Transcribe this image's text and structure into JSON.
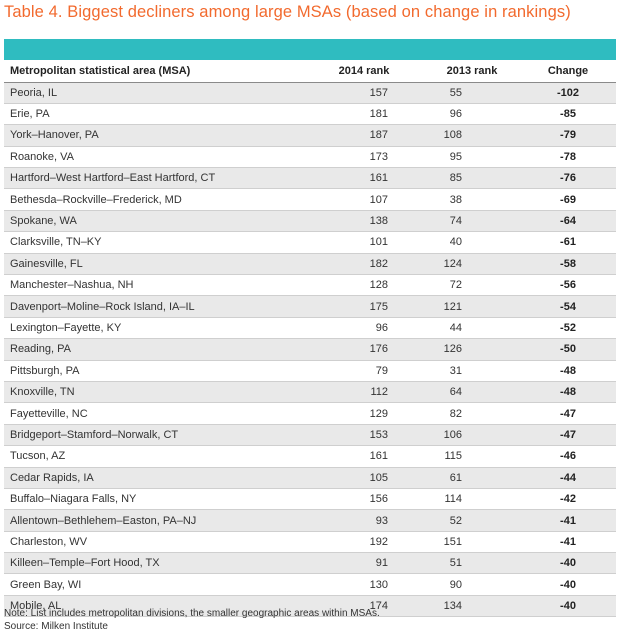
{
  "title": "Table 4. Biggest decliners among large MSAs (based on change in rankings)",
  "colors": {
    "title": "#f26a2e",
    "header_bar": "#2fbcc0"
  },
  "table": {
    "headers": [
      "Metropolitan statistical area (MSA)",
      "2014 rank",
      "2013 rank",
      "Change"
    ],
    "rows": [
      [
        "Peoria, IL",
        "157",
        "55",
        "-102"
      ],
      [
        "Erie, PA",
        "181",
        "96",
        "-85"
      ],
      [
        "York–Hanover, PA",
        "187",
        "108",
        "-79"
      ],
      [
        "Roanoke, VA",
        "173",
        "95",
        "-78"
      ],
      [
        "Hartford–West Hartford–East Hartford, CT",
        "161",
        "85",
        "-76"
      ],
      [
        "Bethesda–Rockville–Frederick, MD",
        "107",
        "38",
        "-69"
      ],
      [
        "Spokane, WA",
        "138",
        "74",
        "-64"
      ],
      [
        "Clarksville, TN–KY",
        "101",
        "40",
        "-61"
      ],
      [
        "Gainesville, FL",
        "182",
        "124",
        "-58"
      ],
      [
        "Manchester–Nashua, NH",
        "128",
        "72",
        "-56"
      ],
      [
        "Davenport–Moline–Rock Island, IA–IL",
        "175",
        "121",
        "-54"
      ],
      [
        "Lexington–Fayette, KY",
        "96",
        "44",
        "-52"
      ],
      [
        "Reading, PA",
        "176",
        "126",
        "-50"
      ],
      [
        "Pittsburgh, PA",
        "79",
        "31",
        "-48"
      ],
      [
        "Knoxville, TN",
        "112",
        "64",
        "-48"
      ],
      [
        "Fayetteville, NC",
        "129",
        "82",
        "-47"
      ],
      [
        "Bridgeport–Stamford–Norwalk, CT",
        "153",
        "106",
        "-47"
      ],
      [
        "Tucson, AZ",
        "161",
        "115",
        "-46"
      ],
      [
        "Cedar Rapids, IA",
        "105",
        "61",
        "-44"
      ],
      [
        "Buffalo–Niagara Falls, NY",
        "156",
        "114",
        "-42"
      ],
      [
        "Allentown–Bethlehem–Easton, PA–NJ",
        "93",
        "52",
        "-41"
      ],
      [
        "Charleston, WV",
        "192",
        "151",
        "-41"
      ],
      [
        "Killeen–Temple–Fort Hood, TX",
        "91",
        "51",
        "-40"
      ],
      [
        "Green Bay, WI",
        "130",
        "90",
        "-40"
      ],
      [
        "Mobile, AL",
        "174",
        "134",
        "-40"
      ]
    ]
  },
  "footnotes": {
    "note": "Note: List includes metropolitan divisions, the smaller geographic areas within MSAs.",
    "source": "Source: Milken Institute"
  }
}
